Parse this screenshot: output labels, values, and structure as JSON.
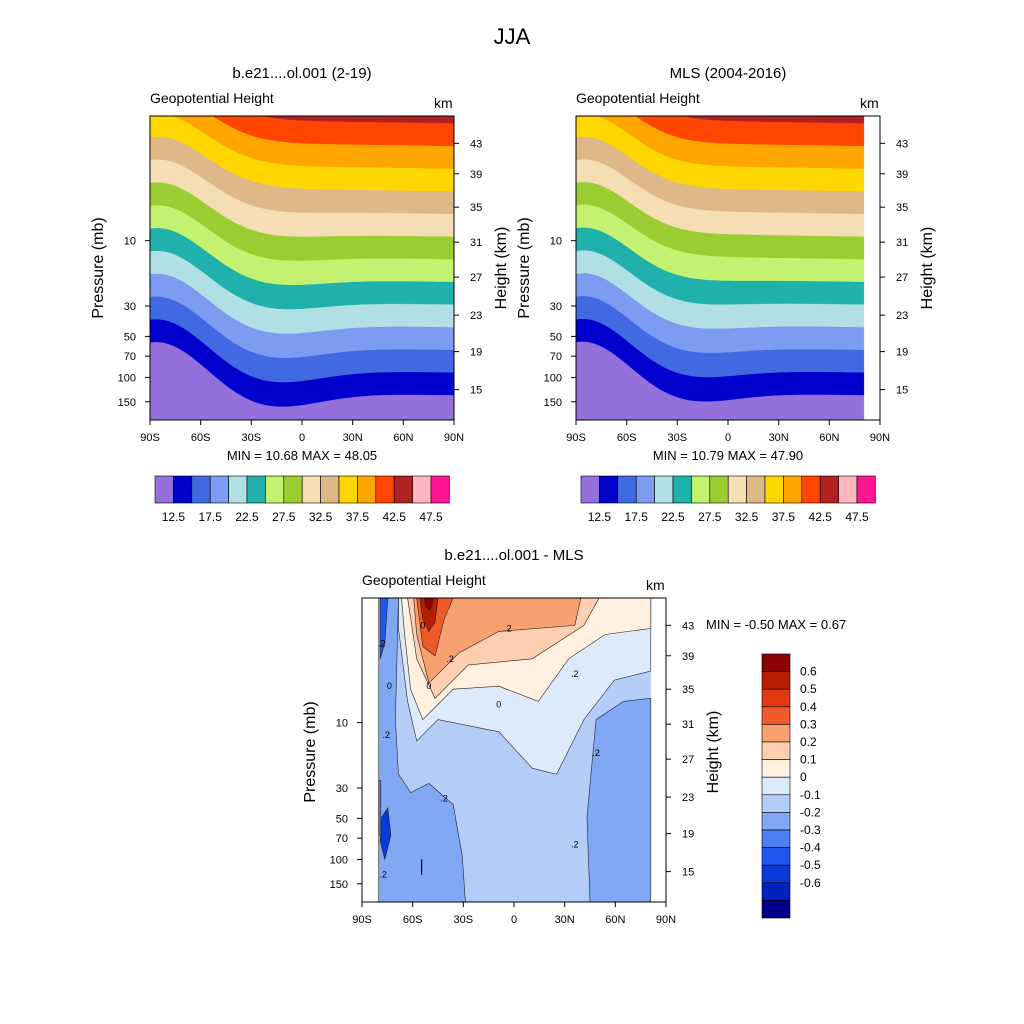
{
  "figure_title": "JJA",
  "chart_data": [
    {
      "type": "contour",
      "title": "b.e21....ol.001 (2-19)",
      "variable_label": "Geopotential Height",
      "units_label": "km",
      "ylabel": "Pressure (mb)",
      "ylabel_right": "Height (km)",
      "x_ticks": [
        "90S",
        "60S",
        "30S",
        "0",
        "30N",
        "60N",
        "90N"
      ],
      "y_ticks": [
        "10",
        "30",
        "50",
        "70",
        "100",
        "150"
      ],
      "y_ticks_right": [
        "43",
        "39",
        "35",
        "31",
        "27",
        "23",
        "19",
        "15"
      ],
      "stats": "MIN =  10.68  MAX =  48.05",
      "levels": [
        12.5,
        15,
        17.5,
        20,
        22.5,
        25,
        27.5,
        30,
        32.5,
        35,
        37.5,
        40,
        42.5,
        45,
        47.5
      ],
      "colorbar_labels": [
        "12.5",
        "17.5",
        "22.5",
        "27.5",
        "32.5",
        "37.5",
        "42.5",
        "47.5"
      ],
      "colors": [
        "#9370db",
        "#0000cd",
        "#4169e1",
        "#7b9cf0",
        "#b0e0e6",
        "#20b2aa",
        "#c2f270",
        "#9acd32",
        "#f5deb3",
        "#deb887",
        "#ffd700",
        "#ffa500",
        "#ff4500",
        "#b22222",
        "#ffb6c1",
        "#ff1493"
      ]
    },
    {
      "type": "contour",
      "title": "MLS (2004-2016)",
      "variable_label": "Geopotential Height",
      "units_label": "km",
      "ylabel": "Pressure (mb)",
      "ylabel_right": "Height (km)",
      "x_ticks": [
        "90S",
        "60S",
        "30S",
        "0",
        "30N",
        "60N",
        "90N"
      ],
      "y_ticks": [
        "10",
        "30",
        "50",
        "70",
        "100",
        "150"
      ],
      "y_ticks_right": [
        "43",
        "39",
        "35",
        "31",
        "27",
        "23",
        "19",
        "15"
      ],
      "stats": "MIN =  10.79  MAX =  47.90",
      "levels": [
        12.5,
        15,
        17.5,
        20,
        22.5,
        25,
        27.5,
        30,
        32.5,
        35,
        37.5,
        40,
        42.5,
        45,
        47.5
      ],
      "colorbar_labels": [
        "12.5",
        "17.5",
        "22.5",
        "27.5",
        "32.5",
        "37.5",
        "42.5",
        "47.5"
      ],
      "colors": [
        "#9370db",
        "#0000cd",
        "#4169e1",
        "#7b9cf0",
        "#b0e0e6",
        "#20b2aa",
        "#c2f270",
        "#9acd32",
        "#f5deb3",
        "#deb887",
        "#ffd700",
        "#ffa500",
        "#ff4500",
        "#b22222",
        "#ffb6c1",
        "#ff1493"
      ]
    },
    {
      "type": "contour",
      "title": "b.e21....ol.001 - MLS",
      "variable_label": "Geopotential Height",
      "units_label": "km",
      "ylabel": "Pressure (mb)",
      "ylabel_right": "Height (km)",
      "x_ticks": [
        "90S",
        "60S",
        "30S",
        "0",
        "30N",
        "60N",
        "90N"
      ],
      "y_ticks": [
        "10",
        "30",
        "50",
        "70",
        "100",
        "150"
      ],
      "y_ticks_right": [
        "43",
        "39",
        "35",
        "31",
        "27",
        "23",
        "19",
        "15"
      ],
      "stats": "MIN = -0.50  MAX =   0.67",
      "levels": [
        -0.6,
        -0.5,
        -0.4,
        -0.3,
        -0.2,
        -0.1,
        0,
        0.1,
        0.2,
        0.3,
        0.4,
        0.5,
        0.6
      ],
      "colorbar_labels": [
        "0.6",
        "0.5",
        "0.4",
        "0.3",
        "0.2",
        "0.1",
        "0",
        "-0.1",
        "-0.2",
        "-0.3",
        "-0.4",
        "-0.5",
        "-0.6"
      ],
      "colors": [
        "#00008b",
        "#0022bb",
        "#0a3ad8",
        "#1f57ee",
        "#4d7ff2",
        "#80a8f5",
        "#b4cdf8",
        "#dceafb",
        "#fff0e0",
        "#fdcfb0",
        "#f8a070",
        "#f05a2a",
        "#e23b10",
        "#b81f00",
        "#8b0000"
      ],
      "contour_labels": [
        ".2",
        ".2",
        "0",
        "0",
        "0",
        "0",
        ".2",
        ".2",
        ".2",
        ".2",
        ".2",
        ".2",
        ".2"
      ]
    }
  ]
}
